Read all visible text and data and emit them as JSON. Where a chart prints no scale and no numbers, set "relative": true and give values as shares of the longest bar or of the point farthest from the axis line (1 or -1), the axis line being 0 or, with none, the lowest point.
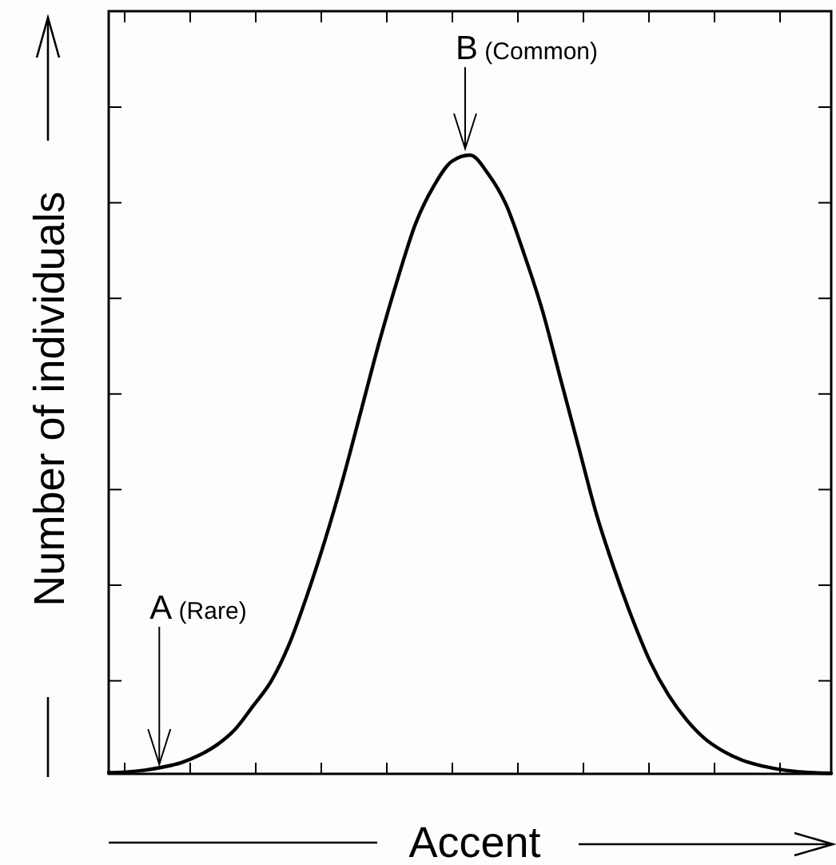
{
  "chart_data": {
    "type": "line",
    "relative": true,
    "xlabel": "Accent",
    "ylabel": "Number of individuals",
    "annotations": [
      "A (Rare)",
      "B (Common)"
    ],
    "categories": [
      null,
      null,
      null,
      null,
      null,
      null,
      null,
      null,
      null,
      null,
      null,
      null,
      null,
      null,
      null,
      null,
      null,
      null,
      null,
      null,
      null,
      null,
      null,
      null,
      null,
      null,
      null,
      null,
      null,
      null,
      null,
      null,
      null,
      null,
      null,
      null,
      null,
      null,
      null,
      null,
      null
    ],
    "series": [
      {
        "color": "#000000",
        "values": [
          0.002,
          0.003,
          0.006,
          0.011,
          0.018,
          0.03,
          0.047,
          0.072,
          0.11,
          0.15,
          0.21,
          0.29,
          0.38,
          0.48,
          0.59,
          0.7,
          0.8,
          0.89,
          0.95,
          0.99,
          1,
          0.97,
          0.92,
          0.84,
          0.75,
          0.64,
          0.53,
          0.42,
          0.33,
          0.25,
          0.18,
          0.127,
          0.087,
          0.057,
          0.037,
          0.023,
          0.014,
          0.008,
          0.004,
          0.002,
          0.001
        ]
      }
    ],
    "marker": "none",
    "line_style": "solid",
    "grid": false
  }
}
